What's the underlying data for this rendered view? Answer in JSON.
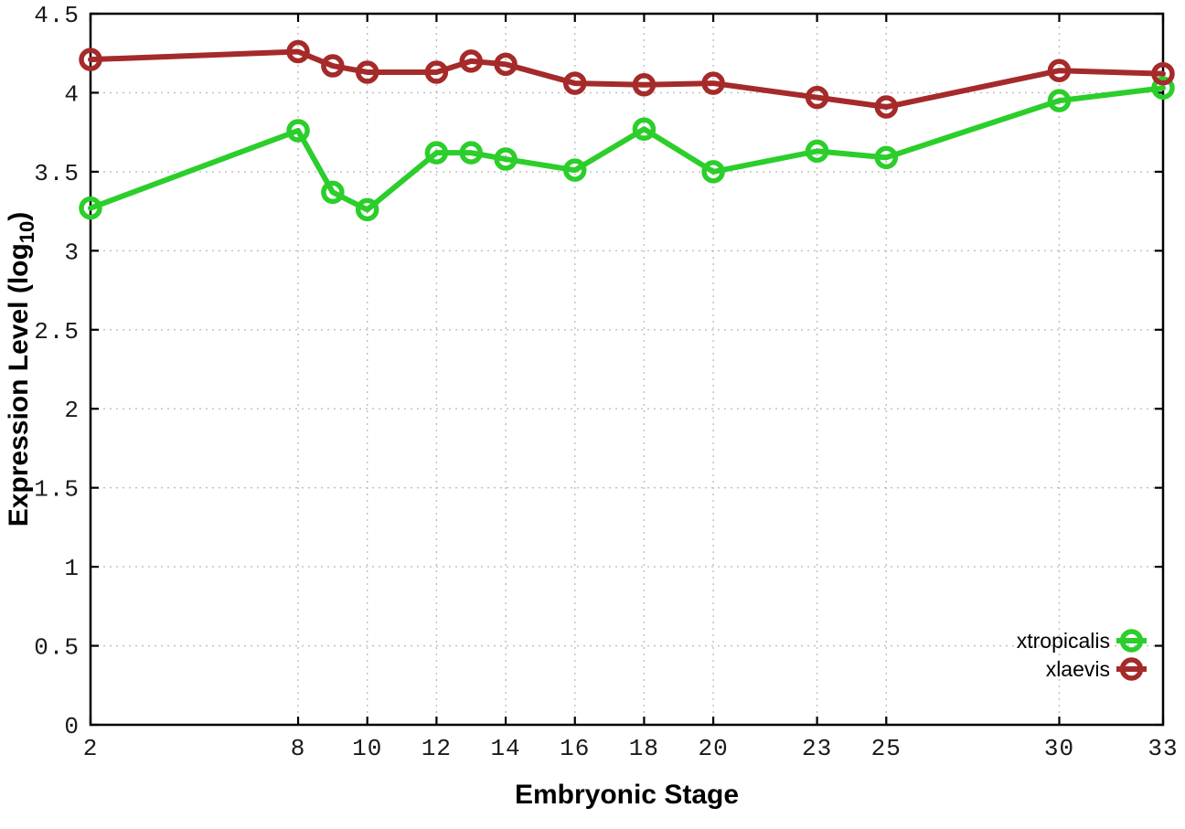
{
  "chart_data": {
    "type": "line",
    "title": "",
    "xlabel": "Embryonic Stage",
    "ylabel": "Expression Level (log10)",
    "ylabel_parts": {
      "base": "Expression Level (log",
      "subscript": "10",
      "close": ")"
    },
    "x": [
      2,
      8,
      9,
      10,
      12,
      13,
      14,
      16,
      18,
      20,
      23,
      25,
      30,
      33
    ],
    "x_tick_labels": [
      "2",
      "8",
      "10",
      "12",
      "14",
      "16",
      "18",
      "20",
      "23",
      "25",
      "30",
      "33"
    ],
    "x_ticks": [
      2,
      8,
      10,
      12,
      14,
      16,
      18,
      20,
      23,
      25,
      30,
      33
    ],
    "y_ticks": [
      0,
      0.5,
      1,
      1.5,
      2,
      2.5,
      3,
      3.5,
      4,
      4.5
    ],
    "xlim": [
      2,
      33
    ],
    "ylim": [
      0,
      4.5
    ],
    "grid": true,
    "legend_position": "bottom-right",
    "series": [
      {
        "name": "xtropicalis",
        "color": "#2bce2b",
        "values": [
          3.27,
          3.76,
          3.37,
          3.26,
          3.62,
          3.62,
          3.58,
          3.51,
          3.77,
          3.5,
          3.63,
          3.59,
          3.95,
          4.03
        ]
      },
      {
        "name": "xlaevis",
        "color": "#a52a2a",
        "values": [
          4.21,
          4.26,
          4.17,
          4.13,
          4.13,
          4.2,
          4.18,
          4.06,
          4.05,
          4.06,
          3.97,
          3.91,
          4.14,
          4.12
        ]
      }
    ],
    "colors": {
      "background": "#ffffff",
      "axis": "#000000",
      "grid": "#bdbdbd",
      "tick_text": "#1a1a1a"
    }
  }
}
